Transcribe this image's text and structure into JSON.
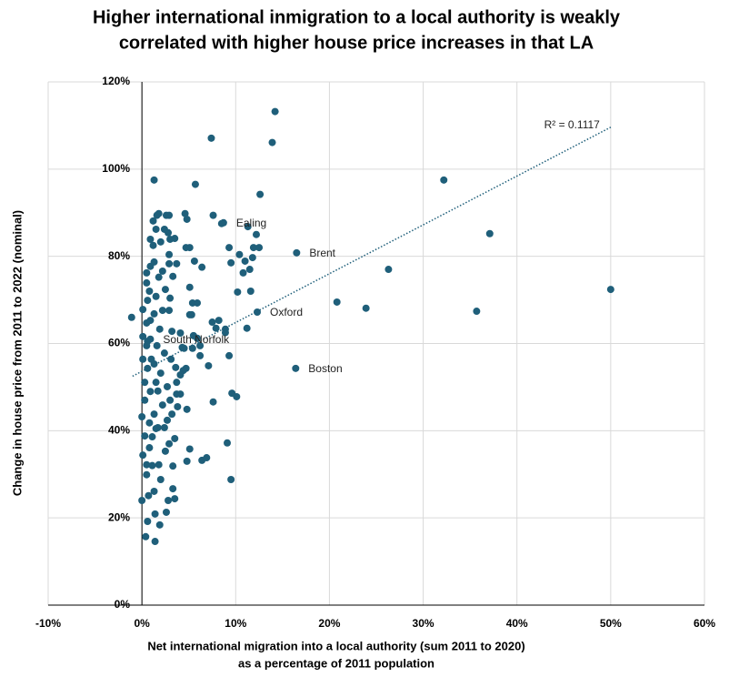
{
  "chart_data": {
    "type": "scatter",
    "title": [
      "Higher international inmigration to a local authority is weakly",
      "correlated with higher house price increases in that LA"
    ],
    "xlabel": [
      "Net international migration into a local authority (sum 2011 to 2020)",
      "as a percentage of 2011 population"
    ],
    "ylabel": "Change in house price from 2011 to 2022 (nominal)",
    "color": "#1f5f7a",
    "grid": true,
    "xlim": [
      -10,
      60
    ],
    "ylim": [
      0,
      120
    ],
    "xticks": [
      {
        "value": -10,
        "label": "-10%"
      },
      {
        "value": 0,
        "label": "0%"
      },
      {
        "value": 10,
        "label": "10%"
      },
      {
        "value": 20,
        "label": "20%"
      },
      {
        "value": 30,
        "label": "30%"
      },
      {
        "value": 40,
        "label": "40%"
      },
      {
        "value": 50,
        "label": "50%"
      },
      {
        "value": 60,
        "label": "60%"
      }
    ],
    "yticks": [
      {
        "value": 0,
        "label": "0%"
      },
      {
        "value": 20,
        "label": "20%"
      },
      {
        "value": 40,
        "label": "40%"
      },
      {
        "value": 60,
        "label": "60%"
      },
      {
        "value": 80,
        "label": "80%"
      },
      {
        "value": 100,
        "label": "100%"
      },
      {
        "value": 120,
        "label": "120%"
      }
    ],
    "x": [
      14.2,
      7.4,
      13.9,
      1.3,
      32.2,
      5.7,
      12.6,
      37.1,
      26.3,
      50.0,
      20.8,
      23.9,
      35.7,
      16.5,
      16.4,
      12.3,
      8.7,
      -1.1,
      10.1,
      9.6,
      7.6,
      9.1,
      9.5,
      4.8,
      6.4,
      6.9,
      5.1,
      4.6,
      4.8,
      7.6,
      8.5,
      11.3,
      12.2,
      4.7,
      5.1,
      9.3,
      11.9,
      12.5,
      10.4,
      11.8,
      11.0,
      9.5,
      5.6,
      6.4,
      11.5,
      10.8,
      10.2,
      11.6,
      5.1,
      5.4,
      5.9,
      5.1,
      5.3,
      7.5,
      8.2,
      7.9,
      8.9,
      8.9,
      11.2,
      5.5,
      5.9,
      6.2,
      5.4,
      9.3,
      7.1,
      6.2,
      4.1,
      4.5,
      4.7,
      4.4,
      4.8,
      4.3,
      0.0,
      0.6,
      0.4,
      1.4,
      1.4,
      1.9,
      2.6,
      3.5,
      3.3,
      2.8,
      0.7,
      1.3,
      0.5,
      2.0,
      3.3,
      1.8,
      0.5,
      1.1,
      2.5,
      2.9,
      3.5,
      1.5,
      0.3,
      0.8,
      0.0,
      2.7,
      3.8,
      4.1,
      3.7,
      4.1,
      3.6,
      3.1,
      1.0,
      2.4,
      1.6,
      0.6,
      1.9,
      3.2,
      0.9,
      2.2,
      2.9,
      0.6,
      1.5,
      3.0,
      0.5,
      1.8,
      3.3,
      0.5,
      0.9,
      2.2,
      1.3,
      2.9,
      3.7,
      1.2,
      2.0,
      2.9,
      3.5,
      3.0,
      1.2,
      1.6,
      1.8,
      2.6,
      2.9,
      1.5,
      2.4,
      2.8,
      0.9,
      0.3,
      0.9,
      1.5,
      2.0,
      0.6,
      1.3,
      2.2,
      2.7,
      1.7,
      1.1,
      0.1,
      0.8,
      0.3,
      0.5,
      0.1,
      1.3,
      1.7,
      2.4,
      3.2,
      3.7,
      3.0,
      0.5,
      1.3,
      0.1,
      0.8,
      2.5,
      0.1,
      0.9
    ],
    "values": [
      113.2,
      107.1,
      106.1,
      97.5,
      97.5,
      96.5,
      94.2,
      85.2,
      77.0,
      72.4,
      69.5,
      68.1,
      67.4,
      80.8,
      54.3,
      67.2,
      87.7,
      66.0,
      47.8,
      48.6,
      46.6,
      37.2,
      28.8,
      33.0,
      33.2,
      33.8,
      35.8,
      89.8,
      88.5,
      89.4,
      87.5,
      86.8,
      85.0,
      82.0,
      82.0,
      82.0,
      82.0,
      82.0,
      80.4,
      79.7,
      78.9,
      78.5,
      78.9,
      77.5,
      77.0,
      76.2,
      71.8,
      72.0,
      72.9,
      69.3,
      69.3,
      66.6,
      66.6,
      64.9,
      65.3,
      63.5,
      63.3,
      62.5,
      63.5,
      61.8,
      61.2,
      59.5,
      58.9,
      57.2,
      54.9,
      57.2,
      62.4,
      58.9,
      54.3,
      53.8,
      44.9,
      59.1,
      24.0,
      19.2,
      15.7,
      14.6,
      20.9,
      18.4,
      21.3,
      24.4,
      26.7,
      24.0,
      25.1,
      26.1,
      29.9,
      28.8,
      31.9,
      32.2,
      32.2,
      32.0,
      35.3,
      37.0,
      38.2,
      40.5,
      38.8,
      36.1,
      43.2,
      42.4,
      45.5,
      48.4,
      48.4,
      52.8,
      54.5,
      56.4,
      56.4,
      57.8,
      59.5,
      60.5,
      63.3,
      62.8,
      65.3,
      67.6,
      67.6,
      69.9,
      70.8,
      70.4,
      73.9,
      75.2,
      75.4,
      76.2,
      77.7,
      76.6,
      78.7,
      78.3,
      78.3,
      82.5,
      83.3,
      80.4,
      84.1,
      83.9,
      88.1,
      89.4,
      89.8,
      89.4,
      89.4,
      86.2,
      86.2,
      85.4,
      83.9,
      47.0,
      49.0,
      51.1,
      53.2,
      54.3,
      43.8,
      45.9,
      50.1,
      40.7,
      38.6,
      34.4,
      41.8,
      51.1,
      59.5,
      56.4,
      55.3,
      49.1,
      40.7,
      43.8,
      51.1,
      47.0,
      64.7,
      66.8,
      67.8,
      72.0,
      72.4,
      61.6,
      61.0
    ],
    "trendline": {
      "x": [
        -1,
        50
      ],
      "y": [
        52.5,
        109.6
      ]
    },
    "r_squared_label": "R² = 0.1117",
    "annotations": [
      {
        "text": "Ealing",
        "x": 8.7,
        "y": 87.7
      },
      {
        "text": "Brent",
        "x": 16.5,
        "y": 80.8
      },
      {
        "text": "Oxford",
        "x": 12.3,
        "y": 67.2
      },
      {
        "text": "South Norfolk",
        "x": 0.9,
        "y": 61.0
      },
      {
        "text": "Boston",
        "x": 16.4,
        "y": 54.3
      }
    ]
  }
}
